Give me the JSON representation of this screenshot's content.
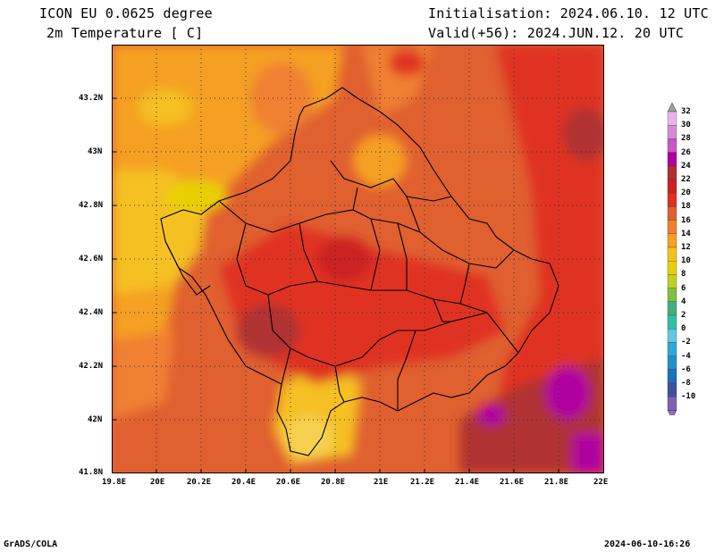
{
  "header": {
    "model_title": "ICON EU 0.0625 degree",
    "variable_title": "2m Temperature [ C]",
    "init_label": "Initialisation: 2024.06.10. 12 UTC",
    "valid_label": "Valid(+56): 2024.JUN.12. 20 UTC"
  },
  "axes": {
    "x_ticks": [
      "19.8E",
      "20E",
      "20.2E",
      "20.4E",
      "20.6E",
      "20.8E",
      "21E",
      "21.2E",
      "21.4E",
      "21.6E",
      "21.8E",
      "22E"
    ],
    "y_ticks": [
      "43.2N",
      "43N",
      "42.8N",
      "42.6N",
      "42.4N",
      "42.2N",
      "42N",
      "41.8N"
    ]
  },
  "colorbar": {
    "levels": [
      "32",
      "30",
      "28",
      "26",
      "24",
      "22",
      "20",
      "18",
      "16",
      "14",
      "12",
      "10",
      "8",
      "6",
      "4",
      "2",
      "0",
      "-2",
      "-4",
      "-6",
      "-8",
      "-10"
    ],
    "colors": [
      "#e8b4e8",
      "#d68ad6",
      "#c858c8",
      "#b000a0",
      "#b03030",
      "#cc2020",
      "#e03020",
      "#e06030",
      "#f08030",
      "#f5a020",
      "#f5c020",
      "#e8d000",
      "#c0d020",
      "#80c040",
      "#40b080",
      "#30c0a0",
      "#60c8e0",
      "#30a8d8",
      "#2090c8",
      "#2070b8",
      "#4050a0",
      "#8060b0"
    ],
    "top_color": "#a0a0a0",
    "bottom_color": "#9070c0"
  },
  "footer": {
    "left": "GrADS/COLA",
    "right": "2024-06-10-16:26"
  }
}
